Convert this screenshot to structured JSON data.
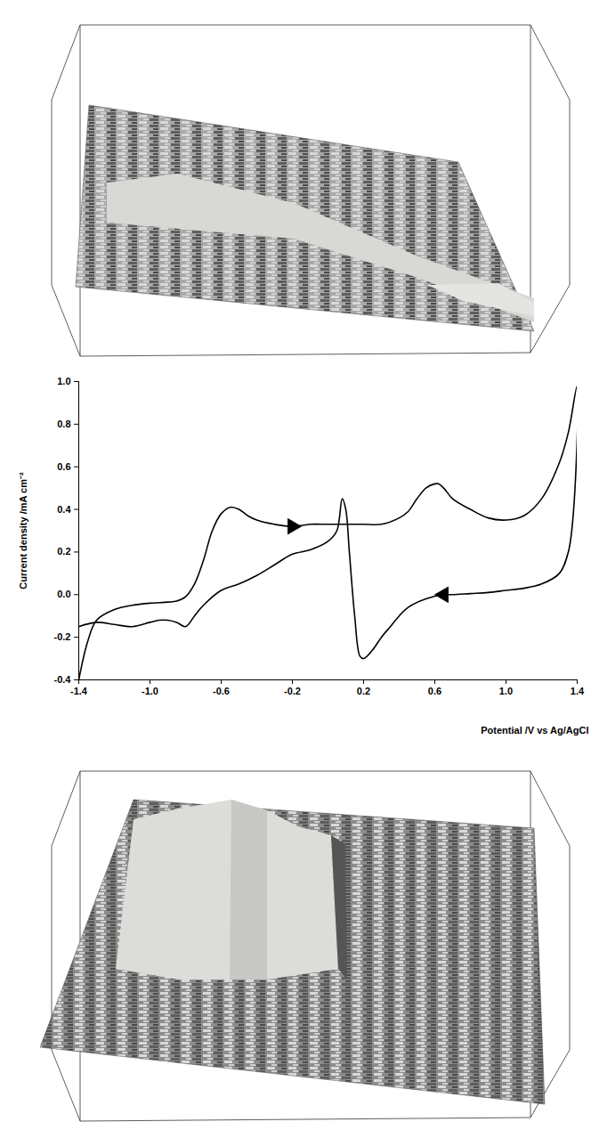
{
  "chart_data": {
    "type": "line",
    "xlabel": "Potential /V vs Ag/AgCl",
    "ylabel": "Current density /mA cm⁻²",
    "color": "#000000",
    "xlim": [
      -1.4,
      1.4
    ],
    "ylim": [
      -0.4,
      1.0
    ],
    "xticks": [
      -1.4,
      {
        "value": -1.0,
        "label": "-1.0"
      },
      -0.6,
      -0.2,
      0.2,
      0.6,
      {
        "value": 1.0,
        "label": "1.0"
      },
      1.4
    ],
    "yticks": [
      -0.4,
      -0.2,
      {
        "value": 0,
        "label": "0.0"
      },
      0.2,
      0.4,
      0.6,
      0.8,
      {
        "value": 1.0,
        "label": "1.0"
      }
    ],
    "x": [
      -1.4,
      -1.35,
      -1.3,
      -1.2,
      -1.1,
      -1.0,
      -0.9,
      -0.85,
      -0.8,
      -0.75,
      -0.7,
      -0.65,
      -0.6,
      -0.55,
      -0.5,
      -0.45,
      -0.4,
      -0.3,
      -0.2,
      -0.1,
      0.0,
      0.1,
      0.2,
      0.3,
      0.4,
      0.45,
      0.5,
      0.55,
      0.6,
      0.62,
      0.65,
      0.7,
      0.8,
      0.9,
      1.0,
      1.1,
      1.2,
      1.3,
      1.35,
      1.4,
      1.38,
      1.35,
      1.3,
      1.2,
      1.1,
      1.0,
      0.9,
      0.8,
      0.7,
      0.65,
      0.55,
      0.45,
      0.4,
      0.35,
      0.3,
      0.25,
      0.2,
      0.18,
      0.15,
      0.12,
      0.1,
      0.08,
      0.05,
      0.0,
      -0.1,
      -0.2,
      -0.3,
      -0.4,
      -0.5,
      -0.6,
      -0.7,
      -0.75,
      -0.8,
      -0.85,
      -0.9,
      -0.95,
      -1.0,
      -1.1,
      -1.2,
      -1.3,
      -1.4
    ],
    "values": [
      -0.4,
      -0.22,
      -0.12,
      -0.07,
      -0.05,
      -0.04,
      -0.035,
      -0.03,
      -0.01,
      0.05,
      0.16,
      0.3,
      0.38,
      0.41,
      0.4,
      0.37,
      0.35,
      0.33,
      0.32,
      0.33,
      0.33,
      0.33,
      0.33,
      0.33,
      0.36,
      0.39,
      0.45,
      0.5,
      0.52,
      0.52,
      0.5,
      0.45,
      0.4,
      0.36,
      0.35,
      0.37,
      0.45,
      0.62,
      0.76,
      0.98,
      0.4,
      0.2,
      0.1,
      0.05,
      0.03,
      0.02,
      0.01,
      0.005,
      0.0,
      0.0,
      -0.02,
      -0.06,
      -0.1,
      -0.15,
      -0.2,
      -0.26,
      -0.3,
      -0.29,
      -0.1,
      0.2,
      0.4,
      0.45,
      0.3,
      0.25,
      0.21,
      0.19,
      0.14,
      0.09,
      0.05,
      0.02,
      -0.05,
      -0.1,
      -0.15,
      -0.13,
      -0.12,
      -0.12,
      -0.13,
      -0.15,
      -0.14,
      -0.13,
      -0.15
    ]
  }
}
